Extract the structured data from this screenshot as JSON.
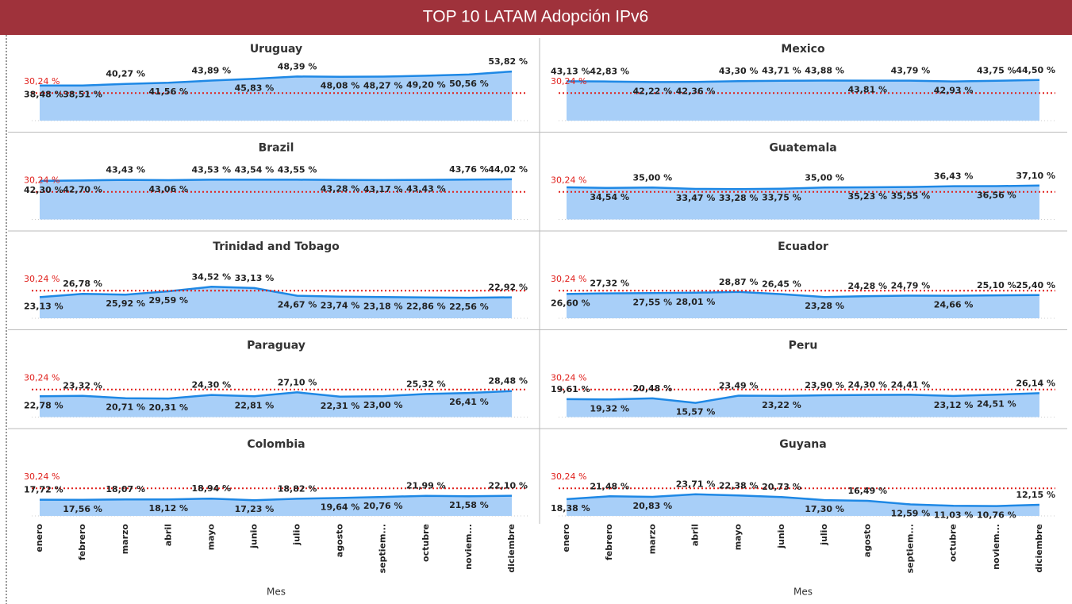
{
  "title": "TOP 10 LATAM Adopción IPv6",
  "x_axis_label": "Mes",
  "categories": [
    "enero",
    "febrero",
    "marzo",
    "abril",
    "mayo",
    "junio",
    "julio",
    "agosto",
    "septiem...",
    "octubre",
    "noviem...",
    "diciembre"
  ],
  "chart_data": [
    {
      "type": "area",
      "title": "Uruguay",
      "color": "#1e88e5",
      "fill": "#a8cff8",
      "ylim": [
        0,
        60
      ],
      "reference": {
        "value": 30.24,
        "label": "30,24 %"
      },
      "reference_color": "#e0201c",
      "values": [
        38.48,
        38.51,
        40.27,
        41.56,
        43.89,
        45.83,
        48.39,
        48.08,
        48.27,
        49.2,
        50.56,
        53.82
      ],
      "value_labels": [
        "38,48 %",
        "38,51 %",
        "40,27 %",
        "41,56 %",
        "43,89 %",
        "45,83 %",
        "48,39 %",
        "48,08 %",
        "48,27 %",
        "49,20 %",
        "50,56 %",
        "53,82 %"
      ]
    },
    {
      "type": "area",
      "title": "Mexico",
      "color": "#1e88e5",
      "fill": "#a8cff8",
      "ylim": [
        0,
        60
      ],
      "reference": {
        "value": 30.24,
        "label": "30,24 %"
      },
      "reference_color": "#e0201c",
      "values": [
        43.13,
        42.83,
        42.22,
        42.36,
        43.3,
        43.71,
        43.88,
        43.81,
        43.79,
        42.93,
        43.75,
        44.5
      ],
      "value_labels": [
        "43,13 %",
        "42,83 %",
        "42,22 %",
        "42,36 %",
        "43,30 %",
        "43,71 %",
        "43,88 %",
        "43,81 %",
        "43,79 %",
        "42,93 %",
        "43,75 %",
        "44,50 %"
      ]
    },
    {
      "type": "area",
      "title": "Brazil",
      "color": "#1e88e5",
      "fill": "#a8cff8",
      "ylim": [
        0,
        60
      ],
      "reference": {
        "value": 30.24,
        "label": "30,24 %"
      },
      "reference_color": "#e0201c",
      "values": [
        42.3,
        42.7,
        43.43,
        43.06,
        43.53,
        43.54,
        43.55,
        43.28,
        43.17,
        43.43,
        43.76,
        44.02
      ],
      "value_labels": [
        "42,30 %",
        "42,70 %",
        "43,43 %",
        "43,06 %",
        "43,53 %",
        "43,54 %",
        "43,55 %",
        "43,28 %",
        "43,17 %",
        "43,43 %",
        "43,76 %",
        "44,02 %"
      ]
    },
    {
      "type": "area",
      "title": "Guatemala",
      "color": "#1e88e5",
      "fill": "#a8cff8",
      "ylim": [
        0,
        60
      ],
      "reference": {
        "value": 30.24,
        "label": "30,24 %"
      },
      "reference_color": "#e0201c",
      "values": [
        35.2,
        34.54,
        35.0,
        33.47,
        33.28,
        33.75,
        35.0,
        35.23,
        35.55,
        36.43,
        36.56,
        37.1
      ],
      "value_labels": [
        null,
        "34,54 %",
        "35,00 %",
        "33,47 %",
        "33,28 %",
        "33,75 %",
        "35,00 %",
        "35,23 %",
        "35,55 %",
        "36,43 %",
        "36,56 %",
        "37,10 %"
      ]
    },
    {
      "type": "area",
      "title": "Trinidad and Tobago",
      "color": "#1e88e5",
      "fill": "#a8cff8",
      "ylim": [
        0,
        60
      ],
      "reference": {
        "value": 30.24,
        "label": "30,24 %"
      },
      "reference_color": "#e0201c",
      "values": [
        23.13,
        26.78,
        25.92,
        29.59,
        34.52,
        33.13,
        24.67,
        23.74,
        23.18,
        22.86,
        22.56,
        22.92
      ],
      "value_labels": [
        "23,13 %",
        "26,78 %",
        "25,92 %",
        "29,59 %",
        "34,52 %",
        "33,13 %",
        "24,67 %",
        "23,74 %",
        "23,18 %",
        "22,86 %",
        "22,56 %",
        "22,92 %"
      ]
    },
    {
      "type": "area",
      "title": "Ecuador",
      "color": "#1e88e5",
      "fill": "#a8cff8",
      "ylim": [
        0,
        60
      ],
      "reference": {
        "value": 30.24,
        "label": "30,24 %"
      },
      "reference_color": "#e0201c",
      "values": [
        26.6,
        27.32,
        27.55,
        28.01,
        28.87,
        26.45,
        23.28,
        24.28,
        24.79,
        24.66,
        25.1,
        25.4
      ],
      "value_labels": [
        "26,60 %",
        "27,32 %",
        "27,55 %",
        "28,01 %",
        "28,87 %",
        "26,45 %",
        "23,28 %",
        "24,28 %",
        "24,79 %",
        "24,66 %",
        "25,10 %",
        "25,40 %"
      ]
    },
    {
      "type": "area",
      "title": "Paraguay",
      "color": "#1e88e5",
      "fill": "#a8cff8",
      "ylim": [
        0,
        60
      ],
      "reference": {
        "value": 30.24,
        "label": "30,24 %"
      },
      "reference_color": "#e0201c",
      "values": [
        22.78,
        23.32,
        20.71,
        20.31,
        24.3,
        22.81,
        27.1,
        22.31,
        23.0,
        25.32,
        26.41,
        28.48
      ],
      "value_labels": [
        "22,78 %",
        "23,32 %",
        "20,71 %",
        "20,31 %",
        "24,30 %",
        "22,81 %",
        "27,10 %",
        "22,31 %",
        "23,00 %",
        "25,32 %",
        "26,41 %",
        "28,48 %"
      ]
    },
    {
      "type": "area",
      "title": "Peru",
      "color": "#1e88e5",
      "fill": "#a8cff8",
      "ylim": [
        0,
        60
      ],
      "reference": {
        "value": 30.24,
        "label": "30,24 %"
      },
      "reference_color": "#e0201c",
      "values": [
        19.61,
        19.32,
        20.48,
        15.57,
        23.49,
        23.22,
        23.9,
        24.3,
        24.41,
        23.12,
        24.51,
        26.14
      ],
      "value_labels": [
        "19,61 %",
        "19,32 %",
        "20,48 %",
        "15,57 %",
        "23,49 %",
        "23,22 %",
        "23,90 %",
        "24,30 %",
        "24,41 %",
        "23,12 %",
        "24,51 %",
        "26,14 %"
      ]
    },
    {
      "type": "area",
      "title": "Colombia",
      "color": "#1e88e5",
      "fill": "#a8cff8",
      "ylim": [
        0,
        60
      ],
      "reference": {
        "value": 30.24,
        "label": "30,24 %"
      },
      "reference_color": "#e0201c",
      "values": [
        17.72,
        17.56,
        18.07,
        18.12,
        18.94,
        17.23,
        18.82,
        19.64,
        20.76,
        21.99,
        21.58,
        22.1
      ],
      "value_labels": [
        "17,72 %",
        "17,56 %",
        "18,07 %",
        "18,12 %",
        "18,94 %",
        "17,23 %",
        "18,82 %",
        "19,64 %",
        "20,76 %",
        "21,99 %",
        "21,58 %",
        "22,10 %"
      ]
    },
    {
      "type": "area",
      "title": "Guyana",
      "color": "#1e88e5",
      "fill": "#a8cff8",
      "ylim": [
        0,
        60
      ],
      "reference": {
        "value": 30.24,
        "label": "30,24 %"
      },
      "reference_color": "#e0201c",
      "values": [
        18.38,
        21.48,
        20.83,
        23.71,
        22.38,
        20.73,
        17.3,
        16.49,
        12.59,
        11.03,
        10.76,
        12.15
      ],
      "value_labels": [
        "18,38 %",
        "21,48 %",
        "20,83 %",
        "23,71 %",
        "22,38 %",
        "20,73 %",
        "17,30 %",
        "16,49 %",
        "12,59 %",
        "11,03 %",
        "10,76 %",
        "12,15 %"
      ]
    }
  ]
}
